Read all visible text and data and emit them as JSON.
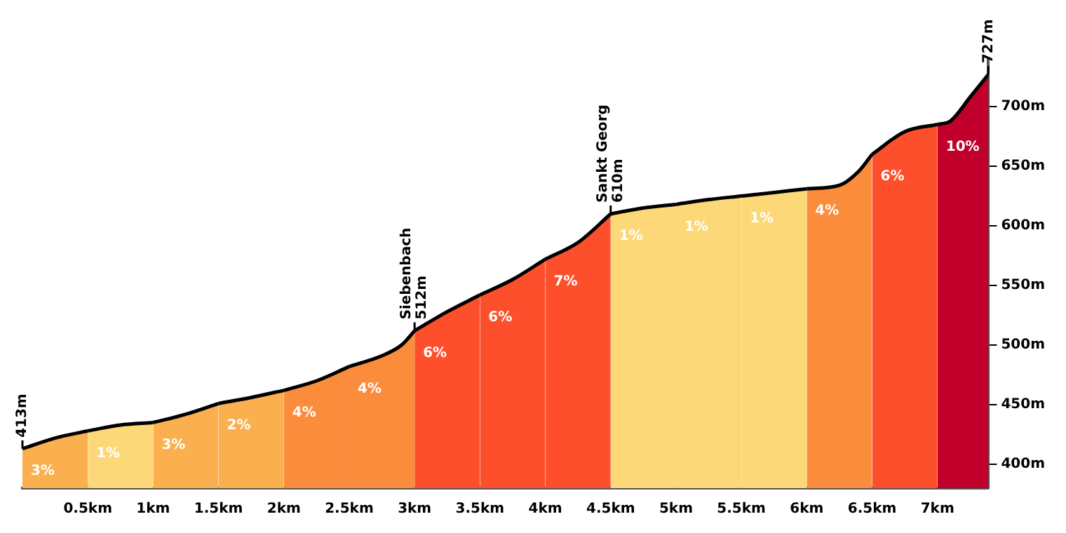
{
  "chart_data": {
    "type": "area",
    "series": [
      {
        "color": "#fab04e",
        "x": [
          0,
          0.25,
          0.5
        ],
        "values": [
          413,
          422,
          428
        ]
      },
      {
        "color": "#fdd878",
        "x": [
          0.5,
          0.75,
          1.0
        ],
        "values": [
          428,
          433,
          435
        ]
      },
      {
        "color": "#fab04e",
        "x": [
          1.0,
          1.25,
          1.5
        ],
        "values": [
          435,
          442,
          451
        ]
      },
      {
        "color": "#fab04e",
        "x": [
          1.5,
          1.75,
          2.0
        ],
        "values": [
          451,
          456,
          462
        ]
      },
      {
        "color": "#fb8c3c",
        "x": [
          2.0,
          2.25,
          2.5
        ],
        "values": [
          462,
          470,
          482
        ]
      },
      {
        "color": "#fb8c3c",
        "x": [
          2.5,
          2.75,
          2.9,
          3.0
        ],
        "values": [
          482,
          491,
          500,
          512
        ]
      },
      {
        "color": "#fd4f2b",
        "x": [
          3.0,
          3.25,
          3.5
        ],
        "values": [
          512,
          528,
          542
        ]
      },
      {
        "color": "#fd4f2b",
        "x": [
          3.5,
          3.75,
          4.0
        ],
        "values": [
          542,
          555,
          572
        ]
      },
      {
        "color": "#fd4f2b",
        "x": [
          4.0,
          4.25,
          4.5
        ],
        "values": [
          572,
          586,
          610
        ]
      },
      {
        "color": "#fdd878",
        "x": [
          4.5,
          4.75,
          5.0
        ],
        "values": [
          610,
          615,
          618
        ]
      },
      {
        "color": "#fdd878",
        "x": [
          5.0,
          5.25,
          5.5
        ],
        "values": [
          618,
          622,
          625
        ]
      },
      {
        "color": "#fdd878",
        "x": [
          5.5,
          5.75,
          6.0
        ],
        "values": [
          625,
          628,
          631
        ]
      },
      {
        "color": "#fb8c3c",
        "x": [
          6.0,
          6.25,
          6.4,
          6.5
        ],
        "values": [
          631,
          634,
          646,
          660
        ]
      },
      {
        "color": "#fd4f2b",
        "x": [
          6.5,
          6.75,
          7.0
        ],
        "values": [
          660,
          679,
          685
        ]
      },
      {
        "color": "#c0002a",
        "x": [
          7.0,
          7.1,
          7.25,
          7.39
        ],
        "values": [
          685,
          688,
          708,
          727
        ]
      }
    ],
    "xlim": [
      0,
      7.39
    ],
    "xticks": [
      {
        "value": 0.5,
        "label": "0.5km"
      },
      {
        "value": 1,
        "label": "1km"
      },
      {
        "value": 1.5,
        "label": "1.5km"
      },
      {
        "value": 2,
        "label": "2km"
      },
      {
        "value": 2.5,
        "label": "2.5km"
      },
      {
        "value": 3,
        "label": "3km"
      },
      {
        "value": 3.5,
        "label": "3.5km"
      },
      {
        "value": 4,
        "label": "4km"
      },
      {
        "value": 4.5,
        "label": "4.5km"
      },
      {
        "value": 5,
        "label": "5km"
      },
      {
        "value": 5.5,
        "label": "5.5km"
      },
      {
        "value": 6,
        "label": "6km"
      },
      {
        "value": 6.5,
        "label": "6.5km"
      },
      {
        "value": 7,
        "label": "7km"
      }
    ],
    "ylim": [
      380,
      740
    ],
    "yticks": [
      {
        "value": 400,
        "label": "400m"
      },
      {
        "value": 450,
        "label": "450m"
      },
      {
        "value": 500,
        "label": "500m"
      },
      {
        "value": 550,
        "label": "550m"
      },
      {
        "value": 600,
        "label": "600m"
      },
      {
        "value": 650,
        "label": "650m"
      },
      {
        "value": 700,
        "label": "700m"
      }
    ],
    "grid": false,
    "legend": false,
    "annotations": [
      {
        "text": "413m",
        "x": 0,
        "y": 413
      },
      {
        "text": "Siebenbach\n512m",
        "x": 3.0,
        "y": 512
      },
      {
        "text": "Sankt Georg\n610m",
        "x": 4.5,
        "y": 610
      },
      {
        "text": "727m",
        "x": 7.39,
        "y": 727
      },
      "3%",
      "1%",
      "3%",
      "2%",
      "4%",
      "4%",
      "6%",
      "6%",
      "7%",
      "1%",
      "1%",
      "1%",
      "4%",
      "6%",
      "10%"
    ]
  }
}
